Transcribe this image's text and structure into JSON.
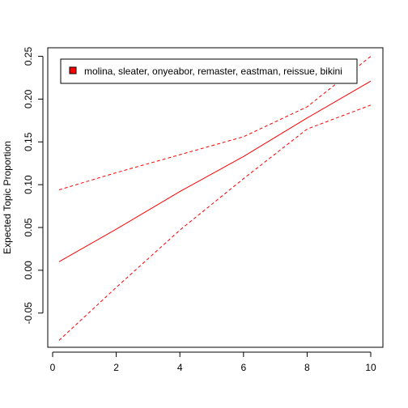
{
  "chart_data": {
    "type": "line",
    "title": "",
    "xlabel": "",
    "ylabel": "Expected Topic Proportion",
    "xlim": [
      0,
      10
    ],
    "ylim": [
      -0.09,
      0.26
    ],
    "x_ticks": [
      0,
      2,
      4,
      6,
      8,
      10
    ],
    "y_ticks": [
      -0.05,
      0.0,
      0.05,
      0.1,
      0.15,
      0.2,
      0.25
    ],
    "y_tick_labels": [
      "-0.05",
      "0.00",
      "0.05",
      "0.10",
      "0.15",
      "0.20",
      "0.25"
    ],
    "grid": false,
    "legend_position": "top-left",
    "legend": [
      {
        "label": "molina, sleater, onyeabor, remaster, eastman, reissue, bikini",
        "color": "#ff0000"
      }
    ],
    "series": [
      {
        "style": "solid",
        "color": "#ff0000",
        "x": [
          0.2,
          2,
          4,
          6,
          8,
          10
        ],
        "y": [
          0.01,
          0.048,
          0.092,
          0.133,
          0.178,
          0.221
        ]
      },
      {
        "style": "dashed",
        "color": "#ff0000",
        "x": [
          0.2,
          2,
          4,
          6,
          8,
          10
        ],
        "y": [
          0.094,
          0.114,
          0.135,
          0.156,
          0.191,
          0.25
        ]
      },
      {
        "style": "dashed",
        "color": "#ff0000",
        "x": [
          0.2,
          2,
          4,
          6,
          8,
          10
        ],
        "y": [
          -0.082,
          -0.02,
          0.047,
          0.107,
          0.165,
          0.193
        ]
      }
    ]
  }
}
